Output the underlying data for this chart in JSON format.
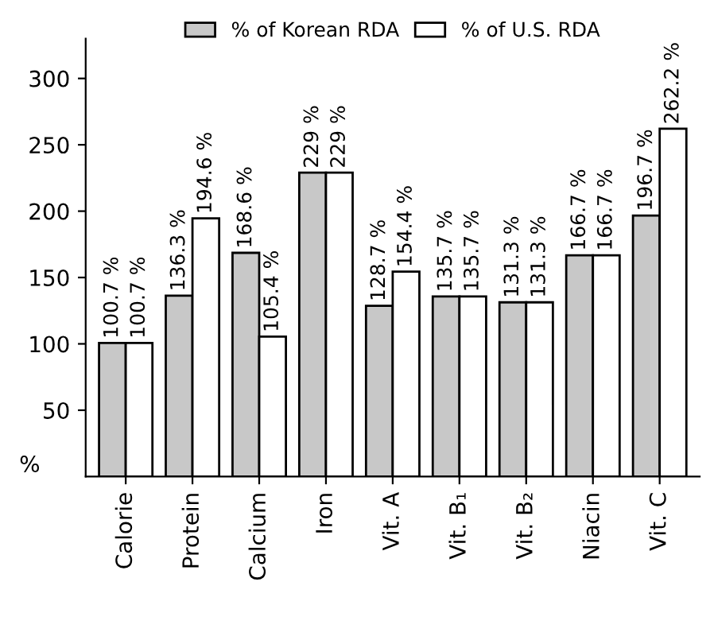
{
  "chart_data": {
    "type": "bar",
    "ylabel": "%",
    "categories": [
      "Calorie",
      "Protein",
      "Calcium",
      "Iron",
      "Vit. A",
      "Vit. B₁",
      "Vit. B₂",
      "Niacin",
      "Vit. C"
    ],
    "series": [
      {
        "name": "% of Korean RDA",
        "color": "#c8c8c8",
        "values": [
          100.7,
          136.3,
          168.6,
          229,
          128.7,
          135.7,
          131.3,
          166.7,
          196.7
        ],
        "value_labels": [
          "100.7 %",
          "136.3 %",
          "168.6 %",
          "229 %",
          "128.7 %",
          "135.7 %",
          "131.3 %",
          "166.7 %",
          "196.7 %"
        ]
      },
      {
        "name": "% of U.S. RDA",
        "color": "#ffffff",
        "values": [
          100.7,
          194.6,
          105.4,
          229,
          154.4,
          135.7,
          131.3,
          166.7,
          262.2
        ],
        "value_labels": [
          "100.7 %",
          "194.6 %",
          "105.4 %",
          "229 %",
          "154.4 %",
          "135.7 %",
          "131.3 %",
          "166.7 %",
          "262.2 %"
        ]
      }
    ],
    "ylim": [
      0,
      330
    ],
    "yticks": [
      50,
      100,
      150,
      200,
      250,
      300
    ],
    "legend": "top",
    "grid": false
  }
}
